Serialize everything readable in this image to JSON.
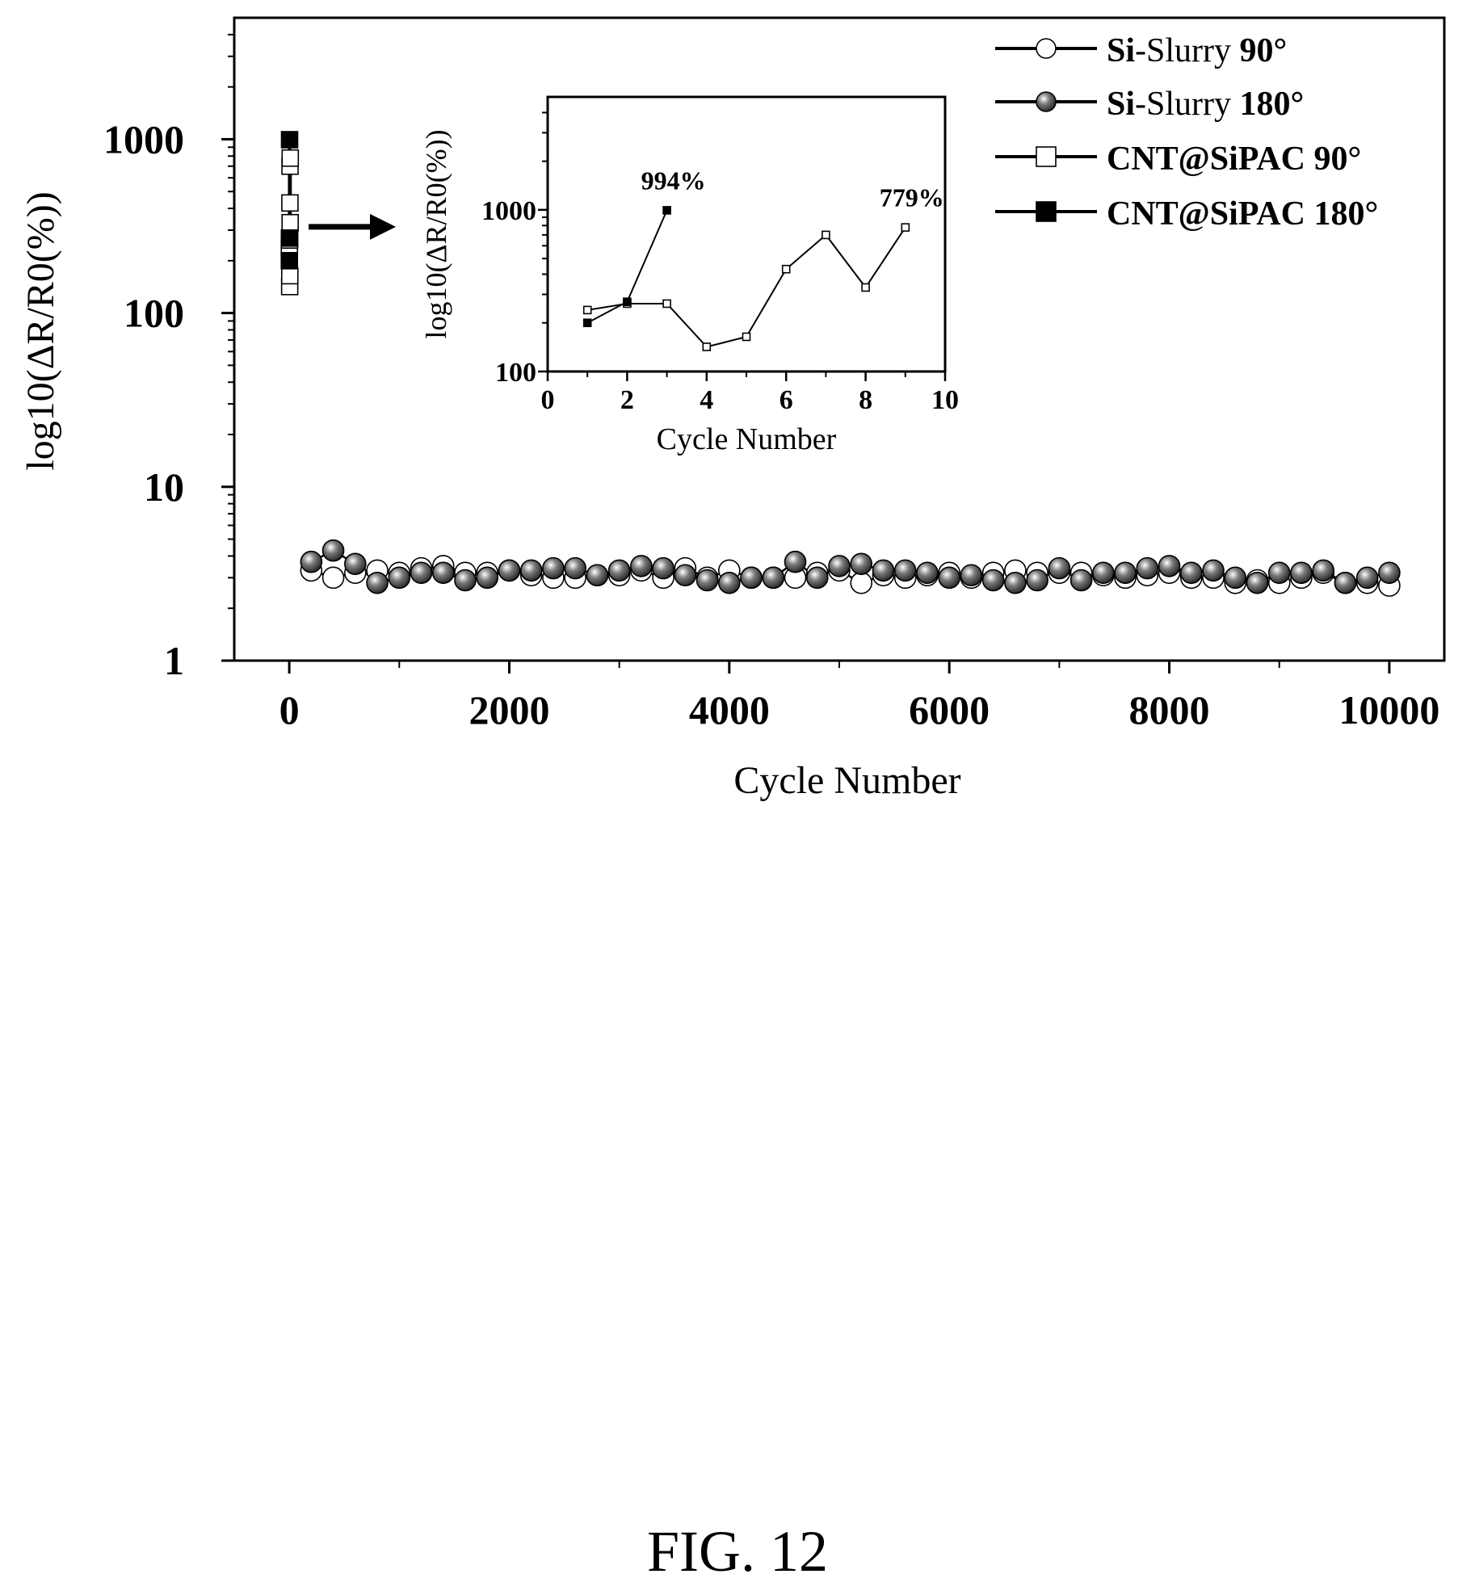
{
  "figure_caption": "FIG. 12",
  "colors": {
    "ink": "#000000",
    "background": "#ffffff",
    "hollow": "#ffffff",
    "ball": "#2b2b2b"
  },
  "chart_data": [
    {
      "type": "line",
      "scale": {
        "x": "linear",
        "y": "log"
      },
      "xlabel": "Cycle Number",
      "ylabel": "log10(ΔR/R0(%))",
      "xlim": [
        -500,
        10500
      ],
      "ylim": [
        1,
        5000
      ],
      "x_ticks": [
        0,
        2000,
        4000,
        6000,
        8000,
        10000
      ],
      "x_tick_labels": [
        "0",
        "2000",
        "4000",
        "6000",
        "8000",
        "10000"
      ],
      "y_ticks": [
        1,
        10,
        100,
        1000
      ],
      "y_tick_labels": [
        "1",
        "10",
        "100",
        "1000"
      ],
      "legend": {
        "placement": "top-right",
        "entries": [
          {
            "bold": "Si",
            "normal": "-Slurry ",
            "bold2": "90°",
            "marker": "circle-open"
          },
          {
            "bold": "Si",
            "normal": "-Slurry ",
            "bold2": "180°",
            "marker": "circle-filled"
          },
          {
            "bold": "CNT@SiPAC 90°",
            "normal": "",
            "bold2": "",
            "marker": "square-open"
          },
          {
            "bold": "CNT@SiPAC 180°",
            "normal": "",
            "bold2": "",
            "marker": "square-filled"
          }
        ]
      },
      "series": [
        {
          "name": "Si-Slurry 90°",
          "marker": "circle-open",
          "x": [
            200,
            400,
            600,
            800,
            1000,
            1200,
            1400,
            1600,
            1800,
            2000,
            2200,
            2400,
            2600,
            2800,
            3000,
            3200,
            3400,
            3600,
            3800,
            4000,
            4200,
            4400,
            4600,
            4800,
            5000,
            5200,
            5400,
            5600,
            5800,
            6000,
            6200,
            6400,
            6600,
            6800,
            7000,
            7200,
            7400,
            7600,
            7800,
            8000,
            8200,
            8400,
            8600,
            8800,
            9000,
            9200,
            9400,
            9600,
            9800,
            10000
          ],
          "values": [
            3.3,
            3.0,
            3.2,
            3.3,
            3.2,
            3.4,
            3.5,
            3.2,
            3.2,
            3.3,
            3.1,
            3.0,
            3.0,
            3.1,
            3.1,
            3.3,
            3.0,
            3.4,
            3.0,
            3.3,
            3.0,
            3.0,
            3.0,
            3.2,
            3.3,
            2.8,
            3.1,
            3.0,
            3.1,
            3.2,
            3.0,
            3.2,
            3.3,
            3.2,
            3.2,
            3.2,
            3.1,
            3.0,
            3.1,
            3.2,
            3.0,
            3.0,
            2.8,
            2.9,
            2.8,
            3.0,
            3.2,
            2.8,
            2.8,
            2.7
          ]
        },
        {
          "name": "Si-Slurry 180°",
          "marker": "circle-filled",
          "x": [
            200,
            400,
            600,
            800,
            1000,
            1200,
            1400,
            1600,
            1800,
            2000,
            2200,
            2400,
            2600,
            2800,
            3000,
            3200,
            3400,
            3600,
            3800,
            4000,
            4200,
            4400,
            4600,
            4800,
            5000,
            5200,
            5400,
            5600,
            5800,
            6000,
            6200,
            6400,
            6600,
            6800,
            7000,
            7200,
            7400,
            7600,
            7800,
            8000,
            8200,
            8400,
            8600,
            8800,
            9000,
            9200,
            9400,
            9600,
            9800,
            10000
          ],
          "values": [
            3.7,
            4.3,
            3.6,
            2.8,
            3.0,
            3.2,
            3.2,
            2.9,
            3.0,
            3.3,
            3.3,
            3.4,
            3.4,
            3.1,
            3.3,
            3.5,
            3.4,
            3.1,
            2.9,
            2.8,
            3.0,
            3.0,
            3.7,
            3.0,
            3.5,
            3.6,
            3.3,
            3.3,
            3.2,
            3.0,
            3.1,
            2.9,
            2.8,
            2.9,
            3.4,
            2.9,
            3.2,
            3.2,
            3.4,
            3.5,
            3.2,
            3.3,
            3.0,
            2.8,
            3.2,
            3.2,
            3.3,
            2.8,
            3.0,
            3.2
          ]
        },
        {
          "name": "CNT@SiPAC 90°",
          "marker": "square-open",
          "x": [
            1,
            2,
            3,
            4,
            5,
            6,
            7,
            8,
            9
          ],
          "values": [
            240,
            263,
            263,
            142,
            164,
            430,
            700,
            331,
            779
          ]
        },
        {
          "name": "CNT@SiPAC 180°",
          "marker": "square-filled",
          "x": [
            1,
            2,
            3
          ],
          "values": [
            200,
            270,
            994
          ]
        }
      ]
    },
    {
      "type": "line",
      "role": "inset",
      "scale": {
        "x": "linear",
        "y": "log"
      },
      "xlabel": "Cycle Number",
      "ylabel": "log10(ΔR/R0(%))",
      "xlim": [
        0,
        10
      ],
      "ylim": [
        100,
        5000
      ],
      "x_ticks": [
        0,
        2,
        4,
        6,
        8,
        10
      ],
      "x_tick_labels": [
        "0",
        "2",
        "4",
        "6",
        "8",
        "10"
      ],
      "y_ticks": [
        100,
        1000
      ],
      "y_tick_labels": [
        "100",
        "1000"
      ],
      "annotations": [
        {
          "text": "994%",
          "x": 3,
          "y": 994
        },
        {
          "text": "779%",
          "x": 9,
          "y": 779
        }
      ],
      "series_refs": [
        "CNT@SiPAC 90°",
        "CNT@SiPAC 180°"
      ]
    }
  ]
}
